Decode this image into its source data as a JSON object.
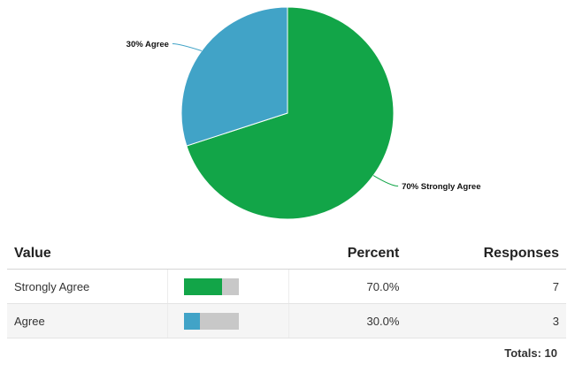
{
  "chart_data": {
    "type": "pie",
    "slices": [
      {
        "label": "Strongly Agree",
        "percent": 70.0,
        "responses": 7,
        "color": "#12a548",
        "slice_label": "70% Strongly Agree"
      },
      {
        "label": "Agree",
        "percent": 30.0,
        "responses": 3,
        "color": "#41a3c7",
        "slice_label": "30% Agree"
      }
    ]
  },
  "table": {
    "headers": {
      "value": "Value",
      "percent": "Percent",
      "responses": "Responses"
    },
    "rows": [
      {
        "value": "Strongly Agree",
        "percent": "70.0%",
        "responses": "7",
        "fraction": 0.7,
        "color": "#12a548"
      },
      {
        "value": "Agree",
        "percent": "30.0%",
        "responses": "3",
        "fraction": 0.3,
        "color": "#41a3c7"
      }
    ],
    "totals_label": "Totals:",
    "totals_value": "10"
  }
}
